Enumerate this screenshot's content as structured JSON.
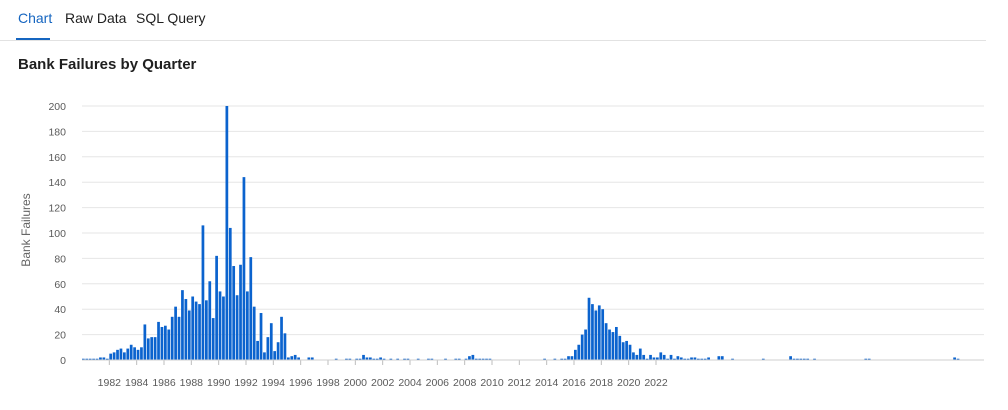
{
  "tabs": [
    {
      "label": "Chart",
      "active": true
    },
    {
      "label": "Raw Data",
      "active": false
    },
    {
      "label": "SQL Query",
      "active": false
    }
  ],
  "colors": {
    "accent": "#1565c0",
    "bar": "#0b63ce",
    "grid": "#e6e6e6"
  },
  "chart_data": {
    "type": "bar",
    "title": "Bank Failures by Quarter",
    "xlabel": "",
    "ylabel": "Bank Failures",
    "ylim": [
      0,
      200
    ],
    "yticks": [
      0,
      20,
      40,
      60,
      80,
      100,
      120,
      140,
      160,
      180,
      200
    ],
    "xticks": [
      "1982",
      "1984",
      "1986",
      "1988",
      "1990",
      "1992",
      "1994",
      "1996",
      "1998",
      "2000",
      "2002",
      "2004",
      "2006",
      "2008",
      "2010",
      "2012",
      "2014",
      "2016",
      "2018",
      "2020",
      "2022"
    ],
    "grid": true,
    "start_year": 1980,
    "values": [
      1,
      1,
      1,
      1,
      1,
      2,
      2,
      1,
      5,
      6,
      8,
      9,
      6,
      9,
      12,
      10,
      8,
      10,
      28,
      17,
      18,
      18,
      30,
      26,
      27,
      24,
      34,
      42,
      34,
      55,
      48,
      39,
      50,
      46,
      44,
      106,
      47,
      62,
      33,
      82,
      54,
      50,
      200,
      104,
      74,
      51,
      75,
      144,
      54,
      81,
      42,
      15,
      37,
      6,
      18,
      29,
      7,
      14,
      34,
      21,
      2,
      3,
      4,
      2,
      0,
      0,
      2,
      2,
      0,
      0,
      0,
      0,
      0,
      0,
      1,
      0,
      0,
      1,
      1,
      0,
      1,
      1,
      4,
      2,
      2,
      1,
      1,
      2,
      1,
      0,
      1,
      0,
      1,
      0,
      1,
      1,
      0,
      0,
      1,
      0,
      0,
      1,
      1,
      0,
      0,
      0,
      1,
      0,
      0,
      1,
      1,
      0,
      1,
      3,
      4,
      1,
      1,
      1,
      1,
      1,
      0,
      0,
      0,
      0,
      0,
      0,
      0,
      0,
      0,
      0,
      0,
      0,
      0,
      0,
      0,
      1,
      0,
      0,
      1,
      0,
      1,
      1,
      3,
      3,
      8,
      12,
      20,
      24,
      49,
      44,
      39,
      43,
      40,
      29,
      24,
      22,
      26,
      19,
      14,
      15,
      12,
      6,
      4,
      9,
      4,
      1,
      4,
      2,
      2,
      6,
      4,
      1,
      4,
      1,
      3,
      2,
      1,
      1,
      2,
      2,
      1,
      1,
      1,
      2,
      0,
      0,
      3,
      3,
      0,
      0,
      1,
      0,
      0,
      0,
      0,
      0,
      0,
      0,
      0,
      1,
      0,
      0,
      0,
      0,
      0,
      0,
      0,
      3,
      1,
      1,
      1,
      1,
      1,
      0,
      1,
      0,
      0,
      0,
      0,
      0,
      0,
      0,
      0,
      0,
      0,
      0,
      0,
      0,
      0,
      1,
      1,
      0,
      0,
      0,
      0,
      0,
      0,
      0,
      0,
      0,
      0,
      0,
      0,
      0,
      0,
      0,
      0,
      0,
      0,
      0,
      0,
      0,
      0,
      0,
      0,
      2,
      1,
      0,
      0,
      0,
      0,
      0,
      0,
      0
    ]
  }
}
